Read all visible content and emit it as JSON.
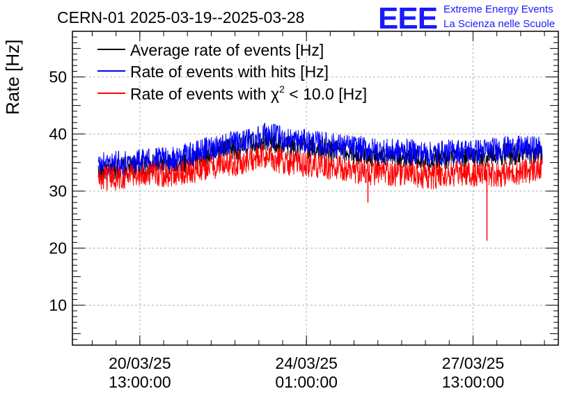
{
  "header": {
    "title": "CERN-01 2025-03-19--2025-03-28",
    "logo_text": "EEE",
    "logo_line1": "Extreme Energy Events",
    "logo_line2": "La Scienza nelle Scuole"
  },
  "chart_data": {
    "type": "line",
    "title": "CERN-01 2025-03-19--2025-03-28",
    "ylabel": "Rate [Hz]",
    "xlabel": "",
    "ylim": [
      3,
      58
    ],
    "yticks": [
      "10",
      "20",
      "30",
      "40",
      "50"
    ],
    "x_ticks": [
      {
        "date": "20/03/25",
        "time": "13:00:00",
        "t": "2025-03-20T13:00:00"
      },
      {
        "date": "24/03/25",
        "time": "01:00:00",
        "t": "2025-03-24T01:00:00"
      },
      {
        "date": "27/03/25",
        "time": "13:00:00",
        "t": "2025-03-27T13:00:00"
      }
    ],
    "xlim": [
      "2025-03-19T03:00:00",
      "2025-03-29T08:00:00"
    ],
    "grid": true,
    "legend_position": "top-left",
    "x": [
      "2025-03-19T16:00",
      "2025-03-20T04:00",
      "2025-03-20T16:00",
      "2025-03-21T04:00",
      "2025-03-21T16:00",
      "2025-03-22T04:00",
      "2025-03-22T16:00",
      "2025-03-23T04:00",
      "2025-03-23T16:00",
      "2025-03-24T04:00",
      "2025-03-24T16:00",
      "2025-03-25T04:00",
      "2025-03-25T16:00",
      "2025-03-26T04:00",
      "2025-03-26T16:00",
      "2025-03-27T04:00",
      "2025-03-27T16:00",
      "2025-03-28T04:00",
      "2025-03-28T16:00",
      "2025-03-29T00:00"
    ],
    "series": [
      {
        "name": "Average rate of events [Hz]",
        "color": "#000000",
        "values": [
          33.5,
          34.0,
          34.5,
          34.5,
          35.5,
          37.0,
          37.5,
          39.0,
          38.0,
          37.5,
          37.0,
          36.5,
          36.0,
          36.0,
          35.5,
          36.0,
          36.0,
          36.5,
          36.5,
          36.5
        ]
      },
      {
        "name": "Rate of events with hits [Hz]",
        "color": "#0000ff",
        "values": [
          34.5,
          35.0,
          35.5,
          35.5,
          36.5,
          38.0,
          38.5,
          40.0,
          39.0,
          38.5,
          38.0,
          37.5,
          37.0,
          37.0,
          36.5,
          37.0,
          37.0,
          37.5,
          37.5,
          37.5
        ]
      },
      {
        "name": "Rate of events with χ² < 10.0 [Hz]",
        "color": "#ff0000",
        "values": [
          32.0,
          32.5,
          33.0,
          33.0,
          33.5,
          34.5,
          35.0,
          36.0,
          35.0,
          34.5,
          34.0,
          33.5,
          33.0,
          33.0,
          32.5,
          33.0,
          33.0,
          33.0,
          33.5,
          34.0
        ],
        "dips": [
          {
            "x": "2025-03-25T08:00",
            "y": 28.0
          },
          {
            "x": "2025-03-27T20:00",
            "y": 21.3
          }
        ]
      }
    ],
    "legend": [
      "Average rate of events [Hz]",
      "Rate of events with hits [Hz]",
      "Rate of events with χ² < 10.0 [Hz]"
    ],
    "legend_parts": {
      "chi_prefix": "Rate of events with ",
      "chi_symbol": "χ",
      "chi_exp": "2",
      "chi_suffix": " < 10.0 [Hz]"
    }
  }
}
